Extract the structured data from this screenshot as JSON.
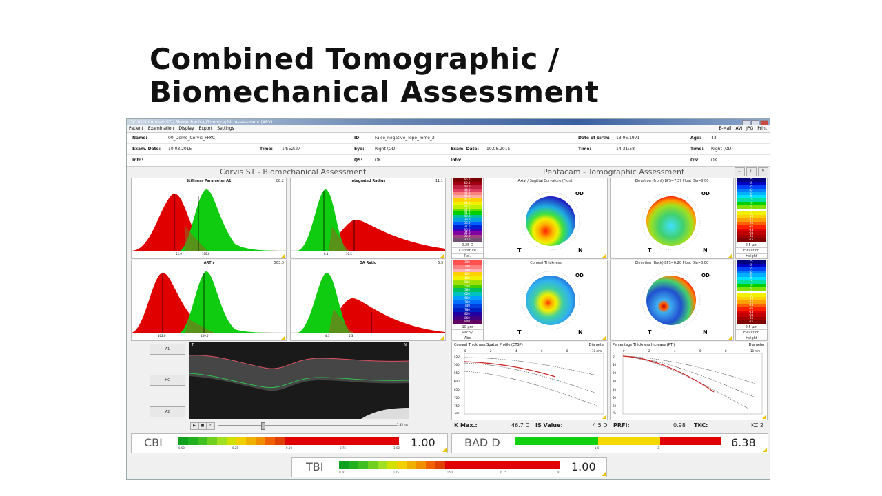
{
  "slide": {
    "title": "Combined Tomographic / Biomechanical Assessment"
  },
  "window": {
    "title": "OCULUS Corvis® ST - Biomechanical/Tomographic Assessment (ARV)",
    "menu_left": [
      "Patient",
      "Examination",
      "Display",
      "Export",
      "Settings"
    ],
    "menu_right": [
      "E-Mail",
      "AVI",
      "JPG",
      "Print"
    ]
  },
  "patient": {
    "name_label": "Name:",
    "name": "00_Demo_Corvis_FFKC",
    "id_label": "ID:",
    "id": "False_negative_Topo_Tomo_2",
    "dob_label": "Date of birth:",
    "dob": "13.06.1971",
    "age_label": "Age:",
    "age": "43",
    "exam_date_label": "Exam. Date:",
    "exam_date": "10.08.2015",
    "time_label": "Time:",
    "time": "14:52:27",
    "eye_label": "Eye:",
    "eye": "Right (OD)",
    "exam_date2_label": "Exam. Date:",
    "exam_date2": "10.08.2015",
    "time2_label": "Time:",
    "time2": "14:31:58",
    "time3_label": "Time:",
    "time3": "Right (OD)",
    "info_label": "Info:",
    "qs_label": "QS:",
    "qs": "OK",
    "info2_label": "Info:",
    "qs2_label": "QS:",
    "qs2": "OK"
  },
  "corvis": {
    "title": "Corvis ST - Biomechanical Assessment",
    "plots": [
      {
        "title": "Stiffness Parameter A1",
        "value": "88.2",
        "ticks": [
          "55.9",
          "105.0"
        ]
      },
      {
        "title": "Integrated Radius",
        "value": "11.1",
        "ticks": [
          "8.1",
          "10.5"
        ]
      },
      {
        "title": "ARTh",
        "value": "563.3",
        "ticks": [
          "162.0",
          "439.0"
        ]
      },
      {
        "title": "DA Ratio",
        "value": "6.3",
        "ticks": [
          "4.3",
          "5.3"
        ]
      }
    ],
    "side_buttons": [
      "A1",
      "HC",
      "A2"
    ],
    "video": {
      "left": "T",
      "right": "N",
      "time": "7.85 ms"
    }
  },
  "pentacam": {
    "title": "Pentacam - Tomographic Assessment",
    "maps": [
      {
        "title": "Axial / Sagittal Curvature (Front)",
        "eye": "OD",
        "T": "T",
        "N": "N"
      },
      {
        "title": "Elevation (Front) BFS=7.37 Float Dia=8.00",
        "eye": "OD",
        "T": "T",
        "N": "N"
      },
      {
        "title": "Corneal Thickness",
        "eye": "OD",
        "T": "T",
        "N": "N"
      },
      {
        "title": "Elevation (Back) BFS=6.20 Float Dia=8.00",
        "eye": "OD",
        "T": "T",
        "N": "N"
      }
    ],
    "scale_curv": {
      "values": [
        "66.0",
        "60.0",
        "49.0",
        "48.0",
        "47.0",
        "46.0",
        "45.0",
        "44.0",
        "43.0",
        "42.0",
        "41.0",
        "40.0",
        "39.0",
        "38.0",
        "37.0",
        "36.0",
        "34.0",
        "32.0",
        "30.0"
      ],
      "footer": [
        "0.25 D",
        "Curvature",
        "Rel."
      ]
    },
    "scale_elev": {
      "values": [
        "75",
        "65",
        "55",
        "45",
        "35",
        "25",
        "15",
        "10",
        "5",
        "0",
        "-5",
        "-10",
        "-15",
        "-25",
        "-35",
        "-45",
        "-55",
        "-65",
        "-75"
      ],
      "footer": [
        "2.5 µm",
        "Elevation",
        "Height"
      ]
    },
    "scale_pachy": {
      "values": [
        "300",
        "340",
        "380",
        "420",
        "460",
        "500",
        "540",
        "580",
        "620",
        "660",
        "700",
        "740",
        "780",
        "820",
        "860",
        "900"
      ],
      "footer": [
        "10 µm",
        "Pachy",
        "Abs"
      ]
    },
    "ctsp": {
      "title": "Corneal Thickness Spatial Profile (CTSP)",
      "xlabel": "Diameter",
      "x_ticks": [
        "0",
        "2",
        "4",
        "6",
        "8",
        "10 mm"
      ],
      "y_ticks": [
        "450",
        "500",
        "550",
        "600",
        "650",
        "700",
        "750"
      ],
      "yunit": "µm"
    },
    "pti": {
      "title": "Percentage Thickness Increase (PTI)",
      "xlabel": "Diameter",
      "x_ticks": [
        "0",
        "2",
        "4",
        "6",
        "8",
        "10 mm"
      ],
      "y_ticks": [
        "0",
        "10",
        "20",
        "30",
        "40",
        "50",
        "60"
      ],
      "yunit": "%"
    },
    "metrics": {
      "kmax_label": "K Max.:",
      "kmax": "46.7 D",
      "isv_label": "IS Value:",
      "isv": "4.5 D",
      "prfi_label": "PRFI:",
      "prfi": "0.98",
      "tkc_label": "TKC:",
      "tkc": "KC 2"
    }
  },
  "gauges": {
    "cbi": {
      "name": "CBI",
      "value": "1.00",
      "ticks": [
        "0.00",
        "0.25",
        "0.50",
        "0.75",
        "1.00"
      ]
    },
    "bad": {
      "name": "BAD D",
      "value": "6.38",
      "ticks": [
        "1.6",
        "3"
      ]
    },
    "tbi": {
      "name": "TBI",
      "value": "1.00",
      "ticks": [
        "0.00",
        "0.25",
        "0.50",
        "0.75",
        "1.00"
      ]
    }
  },
  "colors": {
    "red": "#e00000",
    "green": "#10cc10",
    "yellow": "#f5d800",
    "accent_corner": "#f0c400"
  }
}
